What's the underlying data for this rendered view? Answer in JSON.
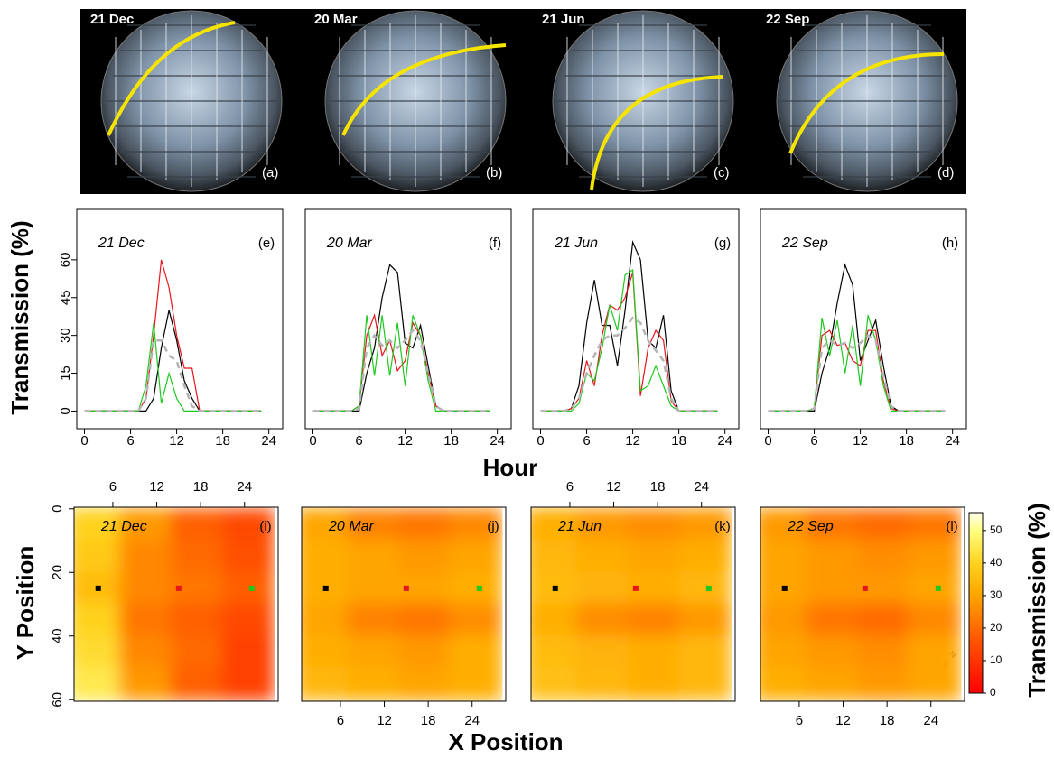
{
  "photos": [
    {
      "date": "21 Dec",
      "tag": "(a)"
    },
    {
      "date": "20 Mar",
      "tag": "(b)"
    },
    {
      "date": "21 Jun",
      "tag": "(c)"
    },
    {
      "date": "22 Sep",
      "tag": "(d)"
    }
  ],
  "figure": {
    "lines_xlabel": "Hour",
    "lines_ylabel": "Transmission (%)",
    "maps_xlabel": "X Position",
    "maps_ylabel": "Y Position"
  },
  "chart_data": [
    {
      "type": "line",
      "title": "21 Dec",
      "panel": "(e)",
      "x": [
        0,
        1,
        2,
        3,
        4,
        5,
        6,
        7,
        8,
        9,
        10,
        11,
        12,
        13,
        14,
        15,
        16,
        17,
        18,
        19,
        20,
        21,
        22,
        23
      ],
      "series": [
        {
          "color": "#000000",
          "values": [
            0,
            0,
            0,
            0,
            0,
            0,
            0,
            0,
            0,
            5,
            25,
            40,
            28,
            12,
            5,
            0,
            0,
            0,
            0,
            0,
            0,
            0,
            0,
            0
          ]
        },
        {
          "color": "#e8141c",
          "values": [
            0,
            0,
            0,
            0,
            0,
            0,
            0,
            0,
            5,
            30,
            60,
            49,
            30,
            17,
            17,
            0,
            0,
            0,
            0,
            0,
            0,
            0,
            0,
            0
          ]
        },
        {
          "color": "#1ec81e",
          "values": [
            0,
            0,
            0,
            0,
            0,
            0,
            0,
            0,
            10,
            35,
            3,
            15,
            5,
            0,
            0,
            0,
            0,
            0,
            0,
            0,
            0,
            0,
            0,
            0
          ]
        },
        {
          "color": "#b4b4b4",
          "dashed": true,
          "values": [
            0,
            0,
            0,
            0,
            0,
            0,
            0,
            0,
            5,
            28,
            28,
            22,
            20,
            10,
            2,
            0,
            0,
            0,
            0,
            0,
            0,
            0,
            0,
            0
          ]
        }
      ],
      "xlim": [
        -1,
        25.8
      ],
      "ylim": [
        -7,
        80
      ],
      "xticks": [
        0,
        6,
        12,
        18,
        24
      ],
      "yticks": [
        0,
        15,
        30,
        45,
        60
      ]
    },
    {
      "type": "line",
      "title": "20 Mar",
      "panel": "(f)",
      "x": [
        0,
        1,
        2,
        3,
        4,
        5,
        6,
        7,
        8,
        9,
        10,
        11,
        12,
        13,
        14,
        15,
        16,
        17,
        18,
        19,
        20,
        21,
        22,
        23
      ],
      "series": [
        {
          "color": "#000000",
          "values": [
            0,
            0,
            0,
            0,
            0,
            0,
            0,
            15,
            25,
            45,
            58,
            55,
            27,
            25,
            34,
            18,
            2,
            0,
            0,
            0,
            0,
            0,
            0,
            0
          ]
        },
        {
          "color": "#e8141c",
          "values": [
            0,
            0,
            0,
            0,
            0,
            0,
            2,
            30,
            38,
            22,
            28,
            16,
            20,
            35,
            30,
            15,
            2,
            0,
            0,
            0,
            0,
            0,
            0,
            0
          ]
        },
        {
          "color": "#1ec81e",
          "values": [
            0,
            0,
            0,
            0,
            0,
            0,
            2,
            38,
            14,
            38,
            14,
            35,
            10,
            38,
            30,
            12,
            0,
            0,
            0,
            0,
            0,
            0,
            0,
            0
          ]
        },
        {
          "color": "#b4b4b4",
          "dashed": true,
          "values": [
            0,
            0,
            0,
            0,
            0,
            0,
            1,
            25,
            30,
            26,
            28,
            25,
            28,
            32,
            28,
            15,
            2,
            0,
            0,
            0,
            0,
            0,
            0,
            0
          ]
        }
      ],
      "xlim": [
        -1,
        25.8
      ],
      "ylim": [
        -7,
        80
      ],
      "xticks": [
        0,
        6,
        12,
        18,
        24
      ]
    },
    {
      "type": "line",
      "title": "21 Jun",
      "panel": "(g)",
      "x": [
        0,
        1,
        2,
        3,
        4,
        5,
        6,
        7,
        8,
        9,
        10,
        11,
        12,
        13,
        14,
        15,
        16,
        17,
        18,
        19,
        20,
        21,
        22,
        23
      ],
      "series": [
        {
          "color": "#000000",
          "values": [
            0,
            0,
            0,
            0,
            1,
            10,
            35,
            52,
            34,
            34,
            18,
            40,
            67,
            60,
            28,
            25,
            38,
            8,
            0,
            0,
            0,
            0,
            0,
            0
          ]
        },
        {
          "color": "#e8141c",
          "values": [
            0,
            0,
            0,
            0,
            1,
            5,
            20,
            10,
            30,
            42,
            40,
            45,
            55,
            6,
            25,
            32,
            28,
            4,
            0,
            0,
            0,
            0,
            0,
            0
          ]
        },
        {
          "color": "#1ec81e",
          "values": [
            0,
            0,
            0,
            0,
            0,
            3,
            15,
            12,
            25,
            42,
            32,
            54,
            56,
            8,
            10,
            18,
            10,
            2,
            0,
            0,
            0,
            0,
            0,
            0
          ]
        },
        {
          "color": "#b4b4b4",
          "dashed": true,
          "values": [
            0,
            0,
            0,
            0,
            1,
            5,
            15,
            22,
            28,
            30,
            30,
            33,
            37,
            35,
            28,
            24,
            20,
            5,
            0,
            0,
            0,
            0,
            0,
            0
          ]
        }
      ],
      "xlim": [
        -1,
        25.8
      ],
      "ylim": [
        -7,
        80
      ],
      "xticks": [
        0,
        6,
        12,
        18,
        24
      ]
    },
    {
      "type": "line",
      "title": "22 Sep",
      "panel": "(h)",
      "x": [
        0,
        1,
        2,
        3,
        4,
        5,
        6,
        7,
        8,
        9,
        10,
        11,
        12,
        13,
        14,
        15,
        16,
        17,
        18,
        19,
        20,
        21,
        22,
        23
      ],
      "series": [
        {
          "color": "#000000",
          "values": [
            0,
            0,
            0,
            0,
            0,
            0,
            0,
            15,
            25,
            43,
            58,
            50,
            20,
            28,
            36,
            18,
            2,
            0,
            0,
            0,
            0,
            0,
            0,
            0
          ]
        },
        {
          "color": "#e8141c",
          "values": [
            0,
            0,
            0,
            0,
            0,
            0,
            1,
            30,
            32,
            26,
            27,
            20,
            18,
            32,
            32,
            12,
            1,
            0,
            0,
            0,
            0,
            0,
            0,
            0
          ]
        },
        {
          "color": "#1ec81e",
          "values": [
            0,
            0,
            0,
            0,
            0,
            0,
            1,
            37,
            22,
            36,
            15,
            34,
            10,
            38,
            28,
            10,
            0,
            0,
            0,
            0,
            0,
            0,
            0,
            0
          ]
        },
        {
          "color": "#b4b4b4",
          "dashed": true,
          "values": [
            0,
            0,
            0,
            0,
            0,
            0,
            1,
            25,
            28,
            26,
            27,
            25,
            27,
            30,
            28,
            14,
            2,
            0,
            0,
            0,
            0,
            0,
            0,
            0
          ]
        }
      ],
      "xlim": [
        -1,
        25.8
      ],
      "ylim": [
        -7,
        80
      ],
      "xticks": [
        0,
        6,
        12,
        18,
        24
      ]
    },
    {
      "type": "heatmap",
      "title": "21 Dec",
      "panel": "(i)",
      "x_axis": "top",
      "x_edges": [
        0,
        7,
        14,
        21,
        28
      ],
      "y_edges": [
        0,
        10,
        20,
        30,
        40,
        50,
        60
      ],
      "values": [
        [
          40,
          28,
          18,
          14
        ],
        [
          38,
          25,
          20,
          15
        ],
        [
          35,
          25,
          22,
          18
        ],
        [
          40,
          22,
          18,
          14
        ],
        [
          42,
          25,
          20,
          12
        ],
        [
          45,
          28,
          18,
          12
        ]
      ],
      "points": [
        {
          "x": 4,
          "y": 25,
          "color": "#000000"
        },
        {
          "x": 15,
          "y": 25,
          "color": "#e8141c"
        },
        {
          "x": 25,
          "y": 25,
          "color": "#1ec81e"
        }
      ],
      "xlim": [
        0.7,
        28.6
      ],
      "ylim": [
        -0.5,
        60.5
      ],
      "xticks": [
        6,
        12,
        18,
        24
      ],
      "yticks": [
        0,
        20,
        40,
        60
      ]
    },
    {
      "type": "heatmap",
      "title": "20 Mar",
      "panel": "(j)",
      "x_axis": "bottom",
      "x_edges": [
        0,
        7,
        14,
        21,
        28
      ],
      "y_edges": [
        0,
        10,
        20,
        30,
        40,
        50,
        60
      ],
      "values": [
        [
          30,
          24,
          22,
          25
        ],
        [
          32,
          30,
          28,
          30
        ],
        [
          32,
          30,
          30,
          32
        ],
        [
          30,
          24,
          22,
          26
        ],
        [
          32,
          30,
          28,
          32
        ],
        [
          34,
          32,
          30,
          32
        ]
      ],
      "points": [
        {
          "x": 4,
          "y": 25,
          "color": "#000000"
        },
        {
          "x": 15,
          "y": 25,
          "color": "#e8141c"
        },
        {
          "x": 25,
          "y": 25,
          "color": "#1ec81e"
        }
      ],
      "xlim": [
        0.7,
        28.6
      ],
      "ylim": [
        -0.5,
        60.5
      ],
      "xticks": [
        6,
        12,
        18,
        24
      ]
    },
    {
      "type": "heatmap",
      "title": "21 Jun",
      "panel": "(k)",
      "x_axis": "top",
      "x_edges": [
        0,
        7,
        14,
        21,
        28
      ],
      "y_edges": [
        0,
        10,
        20,
        30,
        40,
        50,
        60
      ],
      "values": [
        [
          32,
          28,
          26,
          28
        ],
        [
          34,
          32,
          30,
          32
        ],
        [
          35,
          33,
          32,
          34
        ],
        [
          32,
          26,
          24,
          28
        ],
        [
          35,
          33,
          32,
          34
        ],
        [
          36,
          34,
          32,
          34
        ]
      ],
      "points": [
        {
          "x": 4,
          "y": 25,
          "color": "#000000"
        },
        {
          "x": 15,
          "y": 25,
          "color": "#e8141c"
        },
        {
          "x": 25,
          "y": 25,
          "color": "#1ec81e"
        }
      ],
      "xlim": [
        0.7,
        28.6
      ],
      "ylim": [
        -0.5,
        60.5
      ],
      "xticks": [
        6,
        12,
        18,
        24
      ]
    },
    {
      "type": "heatmap",
      "title": "22 Sep",
      "panel": "(l)",
      "x_axis": "bottom",
      "x_edges": [
        0,
        7,
        14,
        21,
        28
      ],
      "y_edges": [
        0,
        10,
        20,
        30,
        40,
        50,
        60
      ],
      "values": [
        [
          28,
          22,
          20,
          22
        ],
        [
          30,
          28,
          26,
          28
        ],
        [
          30,
          28,
          28,
          30
        ],
        [
          28,
          22,
          20,
          25
        ],
        [
          30,
          28,
          26,
          30
        ],
        [
          32,
          30,
          28,
          30
        ]
      ],
      "points": [
        {
          "x": 4,
          "y": 25,
          "color": "#000000"
        },
        {
          "x": 15,
          "y": 25,
          "color": "#e8141c"
        },
        {
          "x": 25,
          "y": 25,
          "color": "#1ec81e"
        }
      ],
      "xlim": [
        0.7,
        28.6
      ],
      "ylim": [
        -0.5,
        60.5
      ],
      "xticks": [
        6,
        12,
        18,
        24
      ]
    },
    {
      "type": "colorbar",
      "label": "Transmission (%)",
      "ylim": [
        0,
        55.5
      ],
      "yticks": [
        0,
        10,
        20,
        30,
        40,
        50
      ]
    }
  ]
}
